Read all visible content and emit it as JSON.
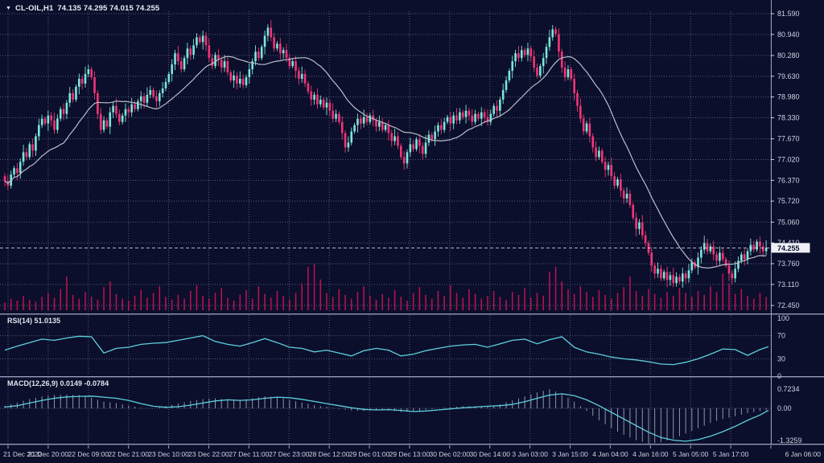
{
  "window": {
    "symbol": "CL-OIL,H1",
    "ohlc": "74.135 74.295 74.015 74.255"
  },
  "colors": {
    "background": "#0b0f2b",
    "grid": "#525b7e",
    "bull": "#7ce6da",
    "bear": "#f23577",
    "volume": "#b5124f",
    "ma_line": "#b9bdc9",
    "indicator_line": "#5ecfdf",
    "histogram": "#8e95ac",
    "separator": "#9aa1b6",
    "axis_text": "#ccd2e4",
    "current_price_line": "#e8eaf0",
    "price_tag_bg": "#eef0f6",
    "price_tag_text": "#0b0f2b"
  },
  "chart_data": {
    "type": "candlestick",
    "title": "CL-OIL,H1",
    "ohlc_display": "74.135 74.295 74.015 74.255",
    "current_price_str": "74.255",
    "price_ticks": [
      "81.590",
      "80.940",
      "80.280",
      "79.630",
      "78.980",
      "78.330",
      "77.670",
      "77.020",
      "76.370",
      "75.720",
      "75.060",
      "74.410",
      "73.760",
      "73.110",
      "72.450"
    ],
    "time_labels": [
      "21 Dec 2022",
      "21 Dec 20:00",
      "22 Dec 09:00",
      "22 Dec 21:00",
      "23 Dec 10:00",
      "23 Dec 22:00",
      "27 Dec 11:00",
      "27 Dec 23:00",
      "28 Dec 12:00",
      "29 Dec 01:00",
      "29 Dec 13:00",
      "30 Dec 02:00",
      "30 Dec 14:00",
      "3 Jan 03:00",
      "3 Jan 15:00",
      "4 Jan 04:00",
      "4 Jan 16:00",
      "5 Jan 05:00",
      "5 Jan 17:00",
      "6 Jan 06:00"
    ],
    "first_open": 76.5,
    "ma_period": 20,
    "closes": [
      76.35,
      76.2,
      76.55,
      76.75,
      76.6,
      76.95,
      77.25,
      77.1,
      77.5,
      77.3,
      77.75,
      78.1,
      78.3,
      78.15,
      78.4,
      78.25,
      77.95,
      78.3,
      78.6,
      78.45,
      78.8,
      79.1,
      78.9,
      79.3,
      79.55,
      79.4,
      79.7,
      79.85,
      79.6,
      79.1,
      78.45,
      77.95,
      78.25,
      78.05,
      78.5,
      78.7,
      78.45,
      78.2,
      78.4,
      78.6,
      78.5,
      78.75,
      78.6,
      78.85,
      79.0,
      78.8,
      79.05,
      79.2,
      79.0,
      78.85,
      79.1,
      79.25,
      79.45,
      79.7,
      80.0,
      80.35,
      80.1,
      79.85,
      80.2,
      80.5,
      80.3,
      80.6,
      80.85,
      80.7,
      80.9,
      80.6,
      80.2,
      79.95,
      80.3,
      80.15,
      79.9,
      80.1,
      79.75,
      79.5,
      79.65,
      79.4,
      79.55,
      79.35,
      79.6,
      79.85,
      80.1,
      80.4,
      80.2,
      80.55,
      80.9,
      81.15,
      80.85,
      80.5,
      80.65,
      80.35,
      80.45,
      80.2,
      79.95,
      80.1,
      79.8,
      79.55,
      79.7,
      79.4,
      79.15,
      78.9,
      79.05,
      78.75,
      78.9,
      78.65,
      78.8,
      78.55,
      78.3,
      78.45,
      78.2,
      77.85,
      77.4,
      77.55,
      77.9,
      78.1,
      78.3,
      78.15,
      78.35,
      78.2,
      78.4,
      78.25,
      78.05,
      78.2,
      77.95,
      78.1,
      77.85,
      77.6,
      77.75,
      77.45,
      77.1,
      76.9,
      77.25,
      77.5,
      77.35,
      77.65,
      77.45,
      77.2,
      77.55,
      77.8,
      77.65,
      77.9,
      78.1,
      77.95,
      78.2,
      78.35,
      78.15,
      78.4,
      78.25,
      78.5,
      78.35,
      78.55,
      78.4,
      78.2,
      78.45,
      78.3,
      78.5,
      78.35,
      78.2,
      78.45,
      78.7,
      78.55,
      78.9,
      79.2,
      79.5,
      79.8,
      80.1,
      80.35,
      80.2,
      80.45,
      80.3,
      80.5,
      80.25,
      79.9,
      79.65,
      79.95,
      80.2,
      80.55,
      80.85,
      81.1,
      80.95,
      80.4,
      79.9,
      79.6,
      79.85,
      79.55,
      79.1,
      78.7,
      78.3,
      77.9,
      78.15,
      77.75,
      77.4,
      77.1,
      77.3,
      76.95,
      76.7,
      76.85,
      76.5,
      76.2,
      76.4,
      76.05,
      75.8,
      75.95,
      75.6,
      75.2,
      74.85,
      75.05,
      74.65,
      74.4,
      74.1,
      73.7,
      73.45,
      73.6,
      73.3,
      73.5,
      73.25,
      73.4,
      73.15,
      73.35,
      73.2,
      73.45,
      73.3,
      73.55,
      73.8,
      73.65,
      73.95,
      74.2,
      74.4,
      74.15,
      74.3,
      74.05,
      73.85,
      74.1,
      73.9,
      73.7,
      73.45,
      73.3,
      73.6,
      73.85,
      74.05,
      73.9,
      74.15,
      74.35,
      74.2,
      74.45,
      74.3,
      74.15,
      74.255
    ],
    "wick_pattern": [
      0.1,
      0.22,
      0.14,
      0.08,
      0.18,
      0.12,
      0.26,
      0.15,
      0.09,
      0.2
    ],
    "volume": [
      8,
      12,
      10,
      15,
      11,
      9,
      14,
      18,
      13,
      22,
      35,
      16,
      12,
      19,
      14,
      11,
      24,
      30,
      17,
      12,
      10,
      15,
      21,
      13,
      18,
      25,
      14,
      11,
      16,
      12,
      20,
      26,
      15,
      12,
      18,
      23,
      13,
      10,
      16,
      21,
      12,
      25,
      17,
      13,
      20,
      15,
      11,
      18,
      28,
      45,
      48,
      32,
      18,
      14,
      22,
      16,
      12,
      19,
      25,
      15,
      11,
      17,
      13,
      21,
      14,
      10,
      18,
      24,
      16,
      12,
      20,
      15,
      26,
      18,
      13,
      22,
      17,
      12,
      15,
      20,
      14,
      11,
      19,
      16,
      23,
      13,
      18,
      15,
      40,
      45,
      30,
      22,
      17,
      25,
      19,
      14,
      21,
      16,
      12,
      18,
      24,
      35,
      20,
      15,
      22,
      17,
      13,
      19,
      15,
      23,
      18,
      14,
      20,
      16,
      25,
      19,
      38,
      28,
      17,
      22,
      15,
      12,
      18,
      14
    ],
    "rsi": {
      "label": "RSI(14) 51.0135",
      "period": 14,
      "current": 51.0135,
      "ticks": [
        100,
        70,
        30,
        0
      ],
      "levels": [
        70,
        30
      ],
      "values": [
        45,
        52,
        58,
        64,
        62,
        66,
        69,
        68,
        40,
        48,
        50,
        55,
        57,
        58,
        62,
        66,
        70,
        60,
        55,
        52,
        58,
        65,
        58,
        50,
        48,
        42,
        45,
        40,
        35,
        44,
        48,
        45,
        35,
        38,
        44,
        48,
        52,
        54,
        55,
        50,
        56,
        62,
        64,
        56,
        63,
        68,
        50,
        42,
        38,
        33,
        30,
        28,
        25,
        21,
        20,
        24,
        30,
        38,
        47,
        46,
        36,
        46,
        51
      ]
    },
    "macd": {
      "label": "MACD(12,26,9) 0.0149 -0.0784",
      "ticks": [
        "0.7234",
        "0.00",
        "-1.3259"
      ],
      "signal": [
        0.05,
        0.1,
        0.2,
        0.3,
        0.38,
        0.43,
        0.45,
        0.46,
        0.42,
        0.38,
        0.3,
        0.18,
        0.08,
        0.04,
        0.06,
        0.12,
        0.2,
        0.28,
        0.32,
        0.3,
        0.32,
        0.38,
        0.42,
        0.4,
        0.34,
        0.26,
        0.18,
        0.1,
        0.02,
        -0.04,
        -0.06,
        -0.05,
        -0.08,
        -0.12,
        -0.1,
        -0.06,
        -0.02,
        0.02,
        0.05,
        0.08,
        0.1,
        0.15,
        0.25,
        0.38,
        0.5,
        0.55,
        0.48,
        0.32,
        0.1,
        -0.15,
        -0.4,
        -0.65,
        -0.9,
        -1.1,
        -1.2,
        -1.24,
        -1.18,
        -1.05,
        -0.88,
        -0.68,
        -0.45,
        -0.25,
        -0.08
      ],
      "hist": [
        0.1,
        0.22,
        0.35,
        0.45,
        0.5,
        0.52,
        0.5,
        0.4,
        0.25,
        0.2,
        0.1,
        0.02,
        0.0,
        0.08,
        0.18,
        0.28,
        0.35,
        0.38,
        0.32,
        0.3,
        0.38,
        0.45,
        0.42,
        0.32,
        0.22,
        0.12,
        0.06,
        -0.02,
        -0.08,
        -0.1,
        -0.06,
        -0.08,
        -0.14,
        -0.12,
        -0.06,
        0.0,
        0.04,
        0.08,
        0.08,
        0.06,
        0.15,
        0.3,
        0.45,
        0.6,
        0.72,
        0.55,
        0.25,
        -0.1,
        -0.45,
        -0.75,
        -1.0,
        -1.2,
        -1.33,
        -1.28,
        -1.15,
        -0.95,
        -0.75,
        -0.55,
        -0.4,
        -0.3,
        -0.18,
        -0.1,
        -0.05
      ]
    }
  }
}
